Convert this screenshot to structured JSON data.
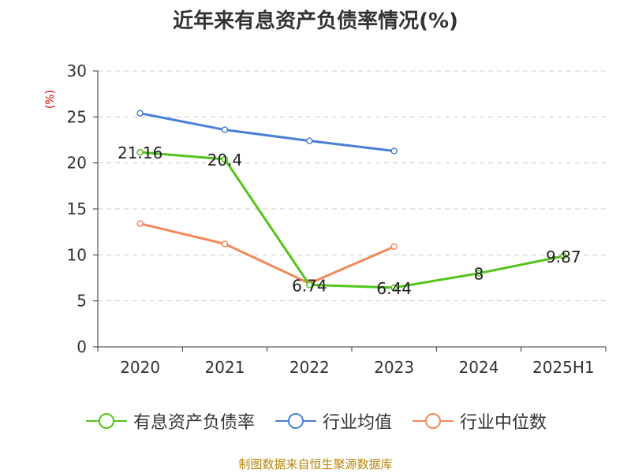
{
  "chart_data": {
    "type": "line",
    "title": "近年来有息资产负债率情况(%)",
    "ylabel": "(%)",
    "categories": [
      "2020",
      "2021",
      "2022",
      "2023",
      "2024",
      "2025H1"
    ],
    "ylim": [
      0,
      30
    ],
    "yticks": [
      0,
      5,
      10,
      15,
      20,
      25,
      30
    ],
    "grid": true,
    "legend_position": "bottom",
    "series": [
      {
        "name": "有息资产负债率",
        "color": "#52c41a",
        "values": [
          21.16,
          20.4,
          6.74,
          6.44,
          8,
          9.87
        ],
        "data_labels": [
          "21.16",
          "20.4",
          "6.74",
          "6.44",
          "8",
          "9.87"
        ]
      },
      {
        "name": "行业均值",
        "color": "#4a7fd8",
        "values": [
          25.4,
          23.6,
          22.4,
          21.3,
          null,
          null
        ]
      },
      {
        "name": "行业中位数",
        "color": "#f4885a",
        "values": [
          13.4,
          11.2,
          6.9,
          10.9,
          null,
          null
        ]
      }
    ]
  },
  "source": "制图数据来自恒生聚源数据库"
}
